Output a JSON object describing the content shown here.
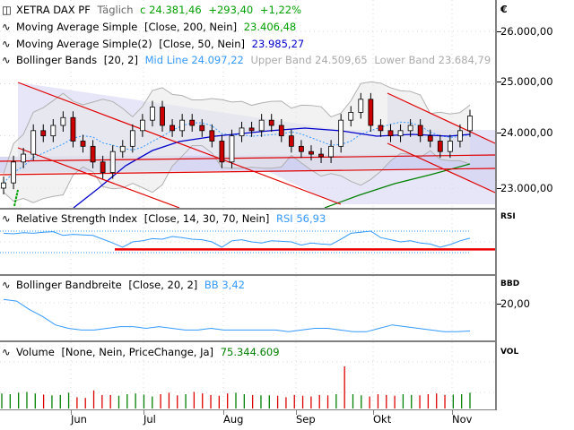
{
  "price_panel": {
    "instrument": "XETRA DAX PF",
    "period": "Täglich",
    "last": "c 24.381,46",
    "change": "+293,40",
    "change_pct": "+1,22%",
    "indicators": [
      {
        "name": "Moving Average Simple",
        "params": "[Close, 200, Nein]",
        "value": "23.406,48",
        "color": "#00a000"
      },
      {
        "name": "Moving Average Simple(2)",
        "params": "[Close, 50, Nein]",
        "value": "23.985,27",
        "color": "#0000cc"
      },
      {
        "name": "Bollinger Bands",
        "params": "[20, 2]",
        "mid": "Mid Line 24.097,22",
        "upper": "Upper Band 24.509,65",
        "lower": "Lower Band 23.684,79",
        "color": "#3399ff"
      }
    ],
    "currency": "€",
    "y_ticks": [
      "26.000,00",
      "25.000,00",
      "24.000,00",
      "23.000,00"
    ]
  },
  "rsi_panel": {
    "name": "Relative Strength Index",
    "params": "[Close, 14, 30, 70, Nein]",
    "value": "RSI 56,93",
    "axis_title": "RSI"
  },
  "bbw_panel": {
    "name": "Bollinger Bandbreite",
    "params": "[Close, 20, 2]",
    "value": "BB 3,42",
    "axis_title": "BBD",
    "y_ticks": [
      "20,00"
    ]
  },
  "volume_panel": {
    "name": "Volume",
    "params": "[None, Nein, PriceChange, Ja]",
    "value": "75.344.609",
    "axis_title": "VOL"
  },
  "x_axis": {
    "months": [
      "Jun",
      "Jul",
      "Aug",
      "Sep",
      "Okt",
      "Nov"
    ]
  },
  "chart_data": [
    {
      "type": "candlestick",
      "title": "XETRA DAX PF Täglich",
      "ylabel": "€",
      "ylim": [
        22800,
        26300
      ],
      "x_ticks": [
        "Jun",
        "Jul",
        "Aug",
        "Sep",
        "Okt",
        "Nov"
      ],
      "y_ticks": [
        23000,
        24000,
        25000,
        26000
      ],
      "approx_close": [
        23100,
        23500,
        23650,
        24100,
        24000,
        24200,
        24350,
        23900,
        23800,
        23500,
        23300,
        23700,
        23800,
        24100,
        24300,
        24550,
        24200,
        24100,
        24300,
        24200,
        24100,
        23900,
        23500,
        24000,
        24150,
        24100,
        24300,
        24200,
        24000,
        23800,
        23700,
        23650,
        23600,
        23800,
        24300,
        24450,
        24700,
        24200,
        24100,
        24000,
        24100,
        24200,
        24000,
        23900,
        23700,
        23900,
        24100,
        24381
      ],
      "series": [
        {
          "name": "SMA 200",
          "value_last": 23406.48
        },
        {
          "name": "SMA 50",
          "value_last": 23985.27
        },
        {
          "name": "Bollinger Mid",
          "value_last": 24097.22
        },
        {
          "name": "Bollinger Upper",
          "value_last": 24509.65
        },
        {
          "name": "Bollinger Lower",
          "value_last": 23684.79
        }
      ],
      "annotations": [
        "Red downtrend channel (May–Aug)",
        "Horizontal support zone ~23.300–23.550",
        "Red downtrend channel (Oct–Nov)"
      ]
    },
    {
      "type": "line",
      "title": "Relative Strength Index [Close, 14, 30, 70, Nein]",
      "ylim": [
        0,
        100
      ],
      "levels": [
        30,
        70
      ],
      "value_last": 56.93,
      "values": [
        66,
        65,
        67,
        66,
        68,
        69,
        62,
        64,
        63,
        62,
        55,
        48,
        40,
        50,
        52,
        56,
        55,
        60,
        58,
        55,
        54,
        50,
        40,
        52,
        54,
        50,
        48,
        52,
        51,
        50,
        44,
        48,
        46,
        45,
        55,
        66,
        68,
        70,
        58,
        54,
        50,
        52,
        48,
        46,
        40,
        45,
        52,
        56.93
      ]
    },
    {
      "type": "line",
      "title": "Bollinger Bandbreite [Close, 20, 2]",
      "y_ticks": [
        20
      ],
      "value_last": 3.42,
      "values": [
        22,
        21,
        16,
        12,
        7,
        5,
        4,
        4,
        5,
        6,
        6,
        5,
        6,
        5,
        4,
        4,
        5,
        4,
        4,
        4,
        4,
        4,
        3,
        4,
        5,
        5,
        4,
        3,
        3,
        5,
        7,
        6,
        5,
        4,
        3,
        3,
        3.42
      ]
    },
    {
      "type": "bar",
      "title": "Volume [None, Nein, PriceChange, Ja]",
      "value_last": 75344609,
      "values": [
        40,
        38,
        42,
        44,
        40,
        37,
        35,
        36,
        42,
        30,
        28,
        48,
        36,
        36,
        34,
        38,
        40,
        37,
        32,
        38,
        42,
        35,
        38,
        44,
        40,
        36,
        34,
        40,
        42,
        38,
        36,
        35,
        35,
        34,
        30,
        36,
        34,
        32,
        36,
        35,
        38,
        112,
        38,
        35,
        32,
        38,
        36,
        34,
        38,
        36,
        35,
        38,
        40,
        36,
        37,
        38,
        42
      ],
      "colors_note": "green = price up, red = price down"
    }
  ]
}
